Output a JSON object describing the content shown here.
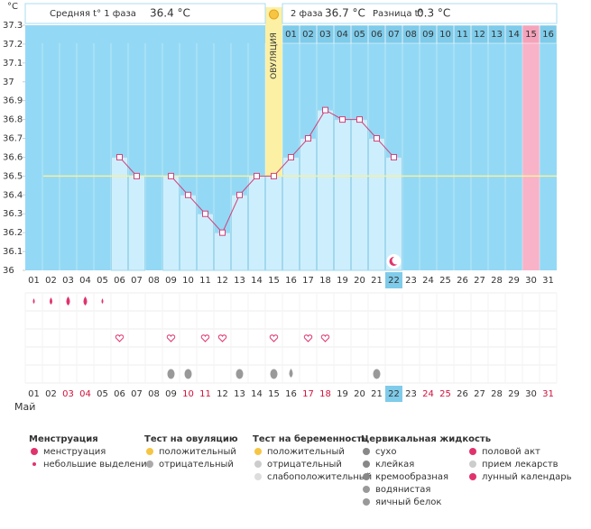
{
  "chart_data": {
    "type": "line",
    "unit": "°C",
    "phase1_label": "Средняя t° 1 фаза",
    "phase1_value": "36.4 °C",
    "phase2_label": "2 фаза",
    "phase2_value": "36.7 °C",
    "diff_label": "Разница t°",
    "diff_value": "0.3 °C",
    "ovulation_label": "ОВУЛЯЦИЯ",
    "month": "Май",
    "categories": [
      "01",
      "02",
      "03",
      "04",
      "05",
      "06",
      "07",
      "08",
      "09",
      "10",
      "11",
      "12",
      "13",
      "14",
      "15",
      "16",
      "17",
      "18",
      "19",
      "20",
      "21",
      "22",
      "23",
      "24",
      "25",
      "26",
      "27",
      "28",
      "29",
      "30",
      "31"
    ],
    "cycle_days": [
      "01",
      "02",
      "03",
      "04",
      "05",
      "06",
      "07",
      "08",
      "09",
      "10",
      "11",
      "12",
      "13",
      "14",
      "15",
      "16"
    ],
    "values": [
      null,
      null,
      null,
      null,
      null,
      36.6,
      36.5,
      null,
      36.5,
      36.4,
      36.3,
      36.2,
      36.4,
      36.5,
      36.5,
      36.6,
      36.7,
      36.85,
      36.8,
      36.8,
      36.7,
      36.6,
      null,
      null,
      null,
      null,
      null,
      null,
      null,
      null,
      null
    ],
    "color": "#d2407a",
    "ylim": [
      36,
      37.3
    ],
    "yticks": [
      36,
      36.1,
      36.2,
      36.3,
      36.4,
      36.5,
      36.6,
      36.7,
      36.8,
      36.9,
      37,
      37.1,
      37.2,
      37.3
    ]
  },
  "legend": [
    {
      "title": "Менструация",
      "items": [
        "менструация",
        "небольшие выделения"
      ]
    },
    {
      "title": "Тест на овуляцию",
      "items": [
        "положительный",
        "отрицательный"
      ]
    },
    {
      "title": "Тест на беременность",
      "items": [
        "положительный",
        "отрицательный",
        "слабоположительный"
      ]
    },
    {
      "title": "Цервикальная жидкость",
      "items": [
        "сухо",
        "клейкая",
        "кремообразная",
        "водянистая",
        "яичный белок"
      ]
    },
    {
      "items": [
        "половой акт",
        "прием лекарств",
        "лунный календарь"
      ]
    }
  ]
}
